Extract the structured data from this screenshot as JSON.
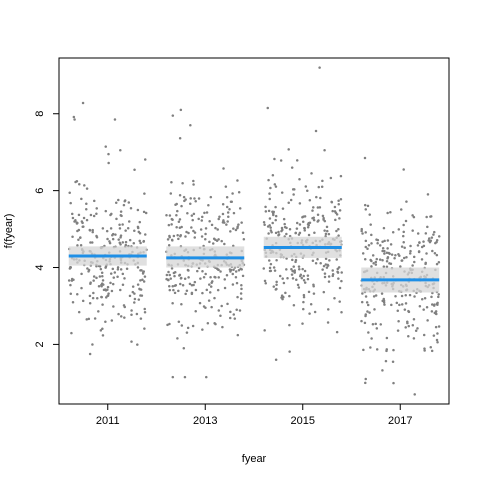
{
  "chart_data": {
    "type": "scatter",
    "title": "",
    "xlabel": "fyear",
    "ylabel": "f(fyear)",
    "xlim": [
      2010,
      2018
    ],
    "ylim": [
      0.45,
      9.45
    ],
    "x_ticks": [
      2011,
      2013,
      2015,
      2017
    ],
    "x_tick_labels": [
      "2011",
      "2013",
      "2015",
      "2017"
    ],
    "y_ticks": [
      2,
      4,
      6,
      8
    ],
    "y_tick_labels": [
      "2",
      "4",
      "6",
      "8"
    ],
    "grid": false,
    "legend": "none",
    "groups": [
      {
        "label": "2011",
        "x_range": [
          2010.2,
          2011.8
        ],
        "fit": 4.3,
        "band": [
          4.05,
          4.55
        ],
        "n_points": 300,
        "y_min": 1.75,
        "y_max": 8.3,
        "outliers": [
          7.05,
          7.85,
          8.28,
          7.85,
          1.75,
          6.95
        ]
      },
      {
        "label": "2013",
        "x_range": [
          2012.2,
          2013.8
        ],
        "fit": 4.25,
        "band": [
          4.0,
          4.55
        ],
        "n_points": 300,
        "y_min": 1.15,
        "y_max": 8.1,
        "outliers": [
          7.7,
          8.1,
          7.95,
          1.15,
          1.9,
          6.25
        ]
      },
      {
        "label": "2015",
        "x_range": [
          2014.2,
          2015.8
        ],
        "fit": 4.52,
        "band": [
          4.25,
          4.8
        ],
        "n_points": 300,
        "y_min": 1.6,
        "y_max": 9.2,
        "outliers": [
          9.2,
          8.15,
          7.55,
          1.6,
          6.6,
          6.1
        ]
      },
      {
        "label": "2017",
        "x_range": [
          2016.2,
          2017.8
        ],
        "fit": 3.68,
        "band": [
          3.35,
          4.0
        ],
        "n_points": 300,
        "y_min": 0.7,
        "y_max": 6.85,
        "outliers": [
          0.7,
          1.0,
          1.1,
          6.85,
          6.55,
          1.85
        ]
      }
    ],
    "colors": {
      "points": "#808080",
      "fit_line": "#1f8fe6",
      "band": "#d6d6d6",
      "axis": "#000000"
    }
  }
}
